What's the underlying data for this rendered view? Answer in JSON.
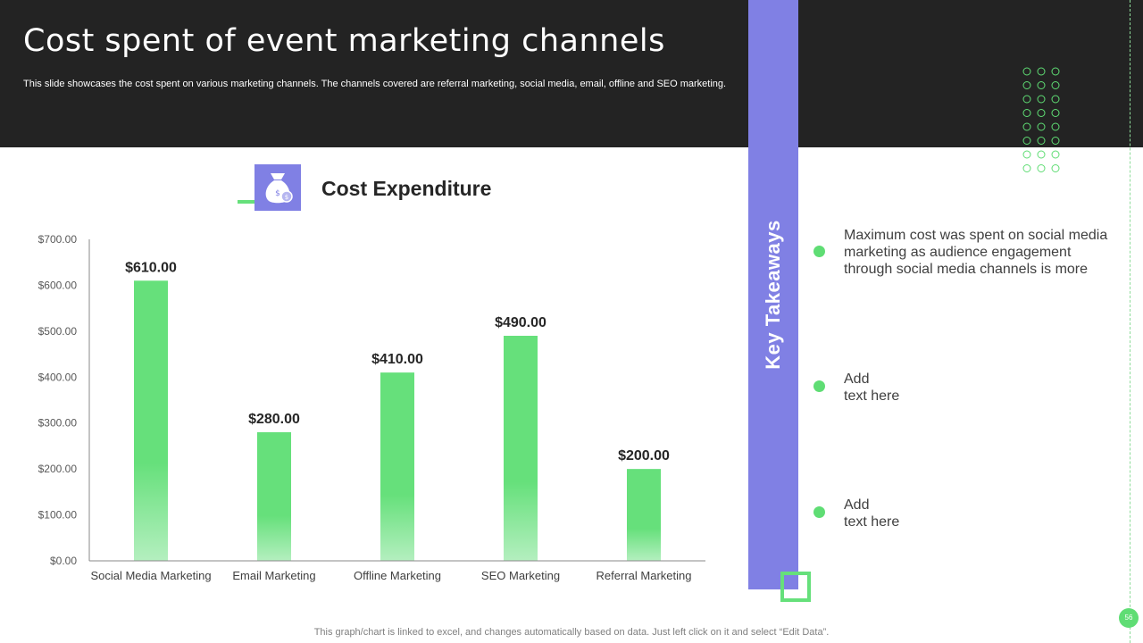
{
  "header": {
    "title": "Cost spent of event marketing channels",
    "subtitle": "This slide showcases the cost spent on various marketing channels. The channels covered are referral marketing, social media, email, offline and SEO marketing."
  },
  "chart_heading": "Cost Expenditure",
  "icon": "money-bag-icon",
  "chart_data": {
    "type": "bar",
    "title": "",
    "xlabel": "",
    "ylabel": "",
    "categories": [
      "Social Media Marketing",
      "Email Marketing",
      "Offline Marketing",
      "SEO Marketing",
      "Referral Marketing"
    ],
    "values": [
      610,
      280,
      410,
      490,
      200
    ],
    "value_labels": [
      "$610.00",
      "$280.00",
      "$410.00",
      "$490.00",
      "$200.00"
    ],
    "ylim": [
      0,
      700
    ],
    "y_ticks": [
      "$0.00",
      "$100.00",
      "$200.00",
      "$300.00",
      "$400.00",
      "$500.00",
      "$600.00",
      "$700.00"
    ],
    "grid": false,
    "bar_color": "#66e07b"
  },
  "takeaways": {
    "label": "Key Takeaways",
    "items": [
      {
        "lines": [
          "Maximum  cost was spent on social media",
          "marketing as audience engagement",
          "through social media channels  is more"
        ]
      },
      {
        "lines": [
          "Add",
          "text here"
        ]
      },
      {
        "lines": [
          "Add",
          "text here"
        ]
      }
    ]
  },
  "footer": {
    "note": "This graph/chart is linked to excel,  and changes automatically based on data. Just left click on it and select “Edit Data”.",
    "page_number": "56"
  },
  "colors": {
    "header_bg": "#232323",
    "accent_purple": "#8080e4",
    "accent_green": "#66e07b"
  }
}
